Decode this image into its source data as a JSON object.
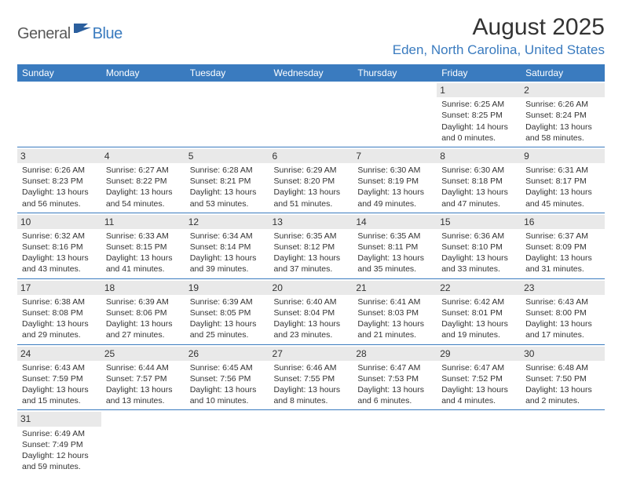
{
  "header": {
    "logo_general": "General",
    "logo_blue": "Blue",
    "month_title": "August 2025",
    "location": "Eden, North Carolina, United States"
  },
  "colors": {
    "brand_blue": "#3a7bbf",
    "text_gray": "#333333",
    "header_bg": "#3a7bbf",
    "daynum_bg": "#e9e9e9",
    "background": "#ffffff"
  },
  "calendar": {
    "day_headers": [
      "Sunday",
      "Monday",
      "Tuesday",
      "Wednesday",
      "Thursday",
      "Friday",
      "Saturday"
    ],
    "weeks": [
      [
        {
          "empty": true
        },
        {
          "empty": true
        },
        {
          "empty": true
        },
        {
          "empty": true
        },
        {
          "empty": true
        },
        {
          "day": "1",
          "sunrise": "Sunrise: 6:25 AM",
          "sunset": "Sunset: 8:25 PM",
          "daylight1": "Daylight: 14 hours",
          "daylight2": "and 0 minutes."
        },
        {
          "day": "2",
          "sunrise": "Sunrise: 6:26 AM",
          "sunset": "Sunset: 8:24 PM",
          "daylight1": "Daylight: 13 hours",
          "daylight2": "and 58 minutes."
        }
      ],
      [
        {
          "day": "3",
          "sunrise": "Sunrise: 6:26 AM",
          "sunset": "Sunset: 8:23 PM",
          "daylight1": "Daylight: 13 hours",
          "daylight2": "and 56 minutes."
        },
        {
          "day": "4",
          "sunrise": "Sunrise: 6:27 AM",
          "sunset": "Sunset: 8:22 PM",
          "daylight1": "Daylight: 13 hours",
          "daylight2": "and 54 minutes."
        },
        {
          "day": "5",
          "sunrise": "Sunrise: 6:28 AM",
          "sunset": "Sunset: 8:21 PM",
          "daylight1": "Daylight: 13 hours",
          "daylight2": "and 53 minutes."
        },
        {
          "day": "6",
          "sunrise": "Sunrise: 6:29 AM",
          "sunset": "Sunset: 8:20 PM",
          "daylight1": "Daylight: 13 hours",
          "daylight2": "and 51 minutes."
        },
        {
          "day": "7",
          "sunrise": "Sunrise: 6:30 AM",
          "sunset": "Sunset: 8:19 PM",
          "daylight1": "Daylight: 13 hours",
          "daylight2": "and 49 minutes."
        },
        {
          "day": "8",
          "sunrise": "Sunrise: 6:30 AM",
          "sunset": "Sunset: 8:18 PM",
          "daylight1": "Daylight: 13 hours",
          "daylight2": "and 47 minutes."
        },
        {
          "day": "9",
          "sunrise": "Sunrise: 6:31 AM",
          "sunset": "Sunset: 8:17 PM",
          "daylight1": "Daylight: 13 hours",
          "daylight2": "and 45 minutes."
        }
      ],
      [
        {
          "day": "10",
          "sunrise": "Sunrise: 6:32 AM",
          "sunset": "Sunset: 8:16 PM",
          "daylight1": "Daylight: 13 hours",
          "daylight2": "and 43 minutes."
        },
        {
          "day": "11",
          "sunrise": "Sunrise: 6:33 AM",
          "sunset": "Sunset: 8:15 PM",
          "daylight1": "Daylight: 13 hours",
          "daylight2": "and 41 minutes."
        },
        {
          "day": "12",
          "sunrise": "Sunrise: 6:34 AM",
          "sunset": "Sunset: 8:14 PM",
          "daylight1": "Daylight: 13 hours",
          "daylight2": "and 39 minutes."
        },
        {
          "day": "13",
          "sunrise": "Sunrise: 6:35 AM",
          "sunset": "Sunset: 8:12 PM",
          "daylight1": "Daylight: 13 hours",
          "daylight2": "and 37 minutes."
        },
        {
          "day": "14",
          "sunrise": "Sunrise: 6:35 AM",
          "sunset": "Sunset: 8:11 PM",
          "daylight1": "Daylight: 13 hours",
          "daylight2": "and 35 minutes."
        },
        {
          "day": "15",
          "sunrise": "Sunrise: 6:36 AM",
          "sunset": "Sunset: 8:10 PM",
          "daylight1": "Daylight: 13 hours",
          "daylight2": "and 33 minutes."
        },
        {
          "day": "16",
          "sunrise": "Sunrise: 6:37 AM",
          "sunset": "Sunset: 8:09 PM",
          "daylight1": "Daylight: 13 hours",
          "daylight2": "and 31 minutes."
        }
      ],
      [
        {
          "day": "17",
          "sunrise": "Sunrise: 6:38 AM",
          "sunset": "Sunset: 8:08 PM",
          "daylight1": "Daylight: 13 hours",
          "daylight2": "and 29 minutes."
        },
        {
          "day": "18",
          "sunrise": "Sunrise: 6:39 AM",
          "sunset": "Sunset: 8:06 PM",
          "daylight1": "Daylight: 13 hours",
          "daylight2": "and 27 minutes."
        },
        {
          "day": "19",
          "sunrise": "Sunrise: 6:39 AM",
          "sunset": "Sunset: 8:05 PM",
          "daylight1": "Daylight: 13 hours",
          "daylight2": "and 25 minutes."
        },
        {
          "day": "20",
          "sunrise": "Sunrise: 6:40 AM",
          "sunset": "Sunset: 8:04 PM",
          "daylight1": "Daylight: 13 hours",
          "daylight2": "and 23 minutes."
        },
        {
          "day": "21",
          "sunrise": "Sunrise: 6:41 AM",
          "sunset": "Sunset: 8:03 PM",
          "daylight1": "Daylight: 13 hours",
          "daylight2": "and 21 minutes."
        },
        {
          "day": "22",
          "sunrise": "Sunrise: 6:42 AM",
          "sunset": "Sunset: 8:01 PM",
          "daylight1": "Daylight: 13 hours",
          "daylight2": "and 19 minutes."
        },
        {
          "day": "23",
          "sunrise": "Sunrise: 6:43 AM",
          "sunset": "Sunset: 8:00 PM",
          "daylight1": "Daylight: 13 hours",
          "daylight2": "and 17 minutes."
        }
      ],
      [
        {
          "day": "24",
          "sunrise": "Sunrise: 6:43 AM",
          "sunset": "Sunset: 7:59 PM",
          "daylight1": "Daylight: 13 hours",
          "daylight2": "and 15 minutes."
        },
        {
          "day": "25",
          "sunrise": "Sunrise: 6:44 AM",
          "sunset": "Sunset: 7:57 PM",
          "daylight1": "Daylight: 13 hours",
          "daylight2": "and 13 minutes."
        },
        {
          "day": "26",
          "sunrise": "Sunrise: 6:45 AM",
          "sunset": "Sunset: 7:56 PM",
          "daylight1": "Daylight: 13 hours",
          "daylight2": "and 10 minutes."
        },
        {
          "day": "27",
          "sunrise": "Sunrise: 6:46 AM",
          "sunset": "Sunset: 7:55 PM",
          "daylight1": "Daylight: 13 hours",
          "daylight2": "and 8 minutes."
        },
        {
          "day": "28",
          "sunrise": "Sunrise: 6:47 AM",
          "sunset": "Sunset: 7:53 PM",
          "daylight1": "Daylight: 13 hours",
          "daylight2": "and 6 minutes."
        },
        {
          "day": "29",
          "sunrise": "Sunrise: 6:47 AM",
          "sunset": "Sunset: 7:52 PM",
          "daylight1": "Daylight: 13 hours",
          "daylight2": "and 4 minutes."
        },
        {
          "day": "30",
          "sunrise": "Sunrise: 6:48 AM",
          "sunset": "Sunset: 7:50 PM",
          "daylight1": "Daylight: 13 hours",
          "daylight2": "and 2 minutes."
        }
      ],
      [
        {
          "day": "31",
          "sunrise": "Sunrise: 6:49 AM",
          "sunset": "Sunset: 7:49 PM",
          "daylight1": "Daylight: 12 hours",
          "daylight2": "and 59 minutes."
        },
        {
          "empty": true
        },
        {
          "empty": true
        },
        {
          "empty": true
        },
        {
          "empty": true
        },
        {
          "empty": true
        },
        {
          "empty": true
        }
      ]
    ]
  }
}
